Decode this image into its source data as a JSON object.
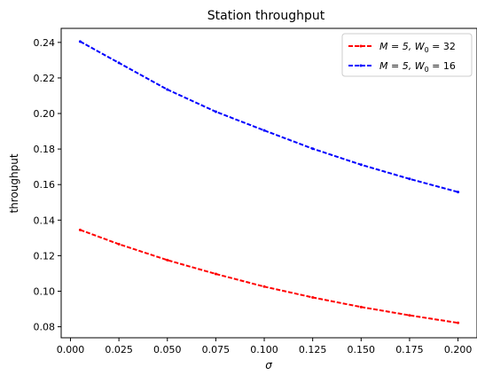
{
  "chart_data": {
    "type": "line",
    "title": "Station throughput",
    "xlabel": "σ",
    "ylabel": "throughput",
    "xlim": [
      -0.0048,
      0.2098
    ],
    "ylim": [
      0.0738,
      0.2479
    ],
    "xticks": [
      0.0,
      0.025,
      0.05,
      0.075,
      0.1,
      0.125,
      0.15,
      0.175,
      0.2
    ],
    "xtick_labels": [
      "0.000",
      "0.025",
      "0.050",
      "0.075",
      "0.100",
      "0.125",
      "0.150",
      "0.175",
      "0.200"
    ],
    "yticks": [
      0.08,
      0.1,
      0.12,
      0.14,
      0.16,
      0.18,
      0.2,
      0.22,
      0.24
    ],
    "ytick_labels": [
      "0.08",
      "0.10",
      "0.12",
      "0.14",
      "0.16",
      "0.18",
      "0.20",
      "0.22",
      "0.24"
    ],
    "grid": false,
    "legend_position": "top-right",
    "x": [
      0.005,
      0.025,
      0.05,
      0.075,
      0.1,
      0.125,
      0.15,
      0.175,
      0.2
    ],
    "series": [
      {
        "name_prefix": "M = 5, W",
        "name_sub": "0",
        "name_suffix": " = 32",
        "color": "#ff0000",
        "values": [
          0.1345,
          0.1265,
          0.1175,
          0.1097,
          0.1026,
          0.0965,
          0.0911,
          0.0864,
          0.0822
        ]
      },
      {
        "name_prefix": "M = 5, W",
        "name_sub": "0",
        "name_suffix": " = 16",
        "color": "#0000ff",
        "values": [
          0.2405,
          0.2285,
          0.2135,
          0.201,
          0.1905,
          0.1802,
          0.1712,
          0.1632,
          0.1558
        ]
      }
    ]
  }
}
